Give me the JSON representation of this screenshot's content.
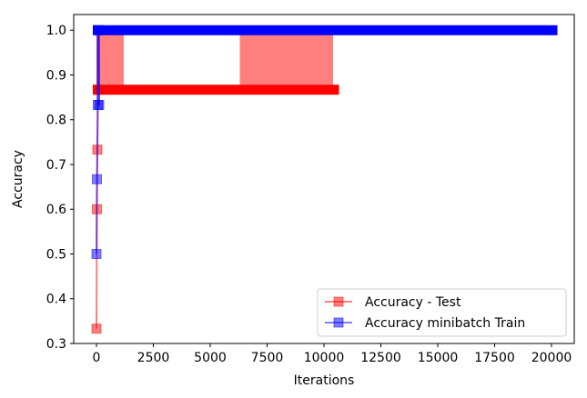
{
  "chart_data": {
    "type": "line",
    "xlabel": "Iterations",
    "ylabel": "Accuracy",
    "xlim": [
      -1000,
      21000
    ],
    "ylim": [
      0.3,
      1.035
    ],
    "xticks": [
      0,
      2500,
      5000,
      7500,
      10000,
      12500,
      15000,
      17500,
      20000
    ],
    "yticks": [
      0.3,
      0.4,
      0.5,
      0.6,
      0.7,
      0.8,
      0.9,
      1.0
    ],
    "xtick_labels": [
      "0",
      "2500",
      "5000",
      "7500",
      "10000",
      "12500",
      "15000",
      "17500",
      "20000"
    ],
    "ytick_labels": [
      "0.3",
      "0.4",
      "0.5",
      "0.6",
      "0.7",
      "0.8",
      "0.9",
      "1.0"
    ],
    "grid": false,
    "legend_position": "bottom-right",
    "series": [
      {
        "name": "Accuracy - Test",
        "color": "#ff0000",
        "marker": "square",
        "alpha": 0.5,
        "dense_segments": [
          {
            "x_start": 0,
            "x_end": 10500,
            "low": 0.867,
            "high": 0.867
          },
          {
            "x_start": 0,
            "x_end": 1200,
            "low": 0.867,
            "high": 1.0
          },
          {
            "x_start": 6300,
            "x_end": 10400,
            "low": 0.867,
            "high": 1.0
          }
        ],
        "points": [
          {
            "x": 0,
            "y": 0.333
          },
          {
            "x": 20,
            "y": 0.6
          },
          {
            "x": 40,
            "y": 0.733
          },
          {
            "x": 60,
            "y": 0.867
          },
          {
            "x": 80,
            "y": 1.0
          }
        ]
      },
      {
        "name": "Accuracy minibatch Train",
        "color": "#0000ff",
        "marker": "square",
        "alpha": 0.5,
        "dense_segments": [
          {
            "x_start": 0,
            "x_end": 20100,
            "low": 1.0,
            "high": 1.0
          },
          {
            "x_start": 0,
            "x_end": 150,
            "low": 0.833,
            "high": 1.0
          }
        ],
        "points": [
          {
            "x": 0,
            "y": 0.5
          },
          {
            "x": 20,
            "y": 0.667
          },
          {
            "x": 60,
            "y": 0.833
          },
          {
            "x": 120,
            "y": 0.833
          },
          {
            "x": 100,
            "y": 1.0
          }
        ]
      }
    ]
  }
}
